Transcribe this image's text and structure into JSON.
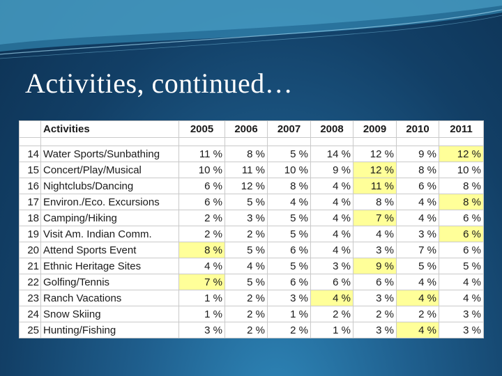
{
  "slide": {
    "title": "Activities, continued…",
    "highlight_color": "#ffff99"
  },
  "table": {
    "header_label": "Activities",
    "years": [
      "2005",
      "2006",
      "2007",
      "2008",
      "2009",
      "2010",
      "2011"
    ],
    "rows": [
      {
        "num": "14",
        "activity": "Water Sports/Sunbathing",
        "values": [
          "11 %",
          "8 %",
          "5 %",
          "14 %",
          "12 %",
          "9 %",
          "12 %"
        ],
        "highlight": [
          false,
          false,
          false,
          false,
          false,
          false,
          true
        ]
      },
      {
        "num": "15",
        "activity": "Concert/Play/Musical",
        "values": [
          "10 %",
          "11 %",
          "10 %",
          "9 %",
          "12 %",
          "8 %",
          "10 %"
        ],
        "highlight": [
          false,
          false,
          false,
          false,
          true,
          false,
          false
        ]
      },
      {
        "num": "16",
        "activity": "Nightclubs/Dancing",
        "values": [
          "6 %",
          "12 %",
          "8 %",
          "4 %",
          "11 %",
          "6 %",
          "8 %"
        ],
        "highlight": [
          false,
          false,
          false,
          false,
          true,
          false,
          false
        ]
      },
      {
        "num": "17",
        "activity": "Environ./Eco. Excursions",
        "values": [
          "6 %",
          "5 %",
          "4 %",
          "4 %",
          "8 %",
          "4 %",
          "8 %"
        ],
        "highlight": [
          false,
          false,
          false,
          false,
          false,
          false,
          true
        ]
      },
      {
        "num": "18",
        "activity": "Camping/Hiking",
        "values": [
          "2 %",
          "3 %",
          "5 %",
          "4 %",
          "7 %",
          "4 %",
          "6 %"
        ],
        "highlight": [
          false,
          false,
          false,
          false,
          true,
          false,
          false
        ]
      },
      {
        "num": "19",
        "activity": "Visit Am. Indian Comm.",
        "values": [
          "2 %",
          "2 %",
          "5 %",
          "4 %",
          "4 %",
          "3 %",
          "6 %"
        ],
        "highlight": [
          false,
          false,
          false,
          false,
          false,
          false,
          true
        ]
      },
      {
        "num": "20",
        "activity": "Attend Sports Event",
        "values": [
          "8 %",
          "5 %",
          "6 %",
          "4 %",
          "3 %",
          "7 %",
          "6 %"
        ],
        "highlight": [
          true,
          false,
          false,
          false,
          false,
          false,
          false
        ]
      },
      {
        "num": "21",
        "activity": "Ethnic Heritage Sites",
        "values": [
          "4 %",
          "4 %",
          "5 %",
          "3 %",
          "9 %",
          "5 %",
          "5 %"
        ],
        "highlight": [
          false,
          false,
          false,
          false,
          true,
          false,
          false
        ]
      },
      {
        "num": "22",
        "activity": "Golfing/Tennis",
        "values": [
          "7 %",
          "5 %",
          "6 %",
          "6 %",
          "6 %",
          "4 %",
          "4 %"
        ],
        "highlight": [
          true,
          false,
          false,
          false,
          false,
          false,
          false
        ]
      },
      {
        "num": "23",
        "activity": "Ranch Vacations",
        "values": [
          "1 %",
          "2 %",
          "3 %",
          "4 %",
          "3 %",
          "4 %",
          "4 %"
        ],
        "highlight": [
          false,
          false,
          false,
          true,
          false,
          true,
          false
        ]
      },
      {
        "num": "24",
        "activity": "Snow Skiing",
        "values": [
          "1 %",
          "2 %",
          "1 %",
          "2 %",
          "2 %",
          "2 %",
          "3 %"
        ],
        "highlight": [
          false,
          false,
          false,
          false,
          false,
          false,
          false
        ]
      },
      {
        "num": "25",
        "activity": "Hunting/Fishing",
        "values": [
          "3 %",
          "2 %",
          "2 %",
          "1 %",
          "3 %",
          "4 %",
          "3 %"
        ],
        "highlight": [
          false,
          false,
          false,
          false,
          false,
          true,
          false
        ]
      }
    ]
  }
}
